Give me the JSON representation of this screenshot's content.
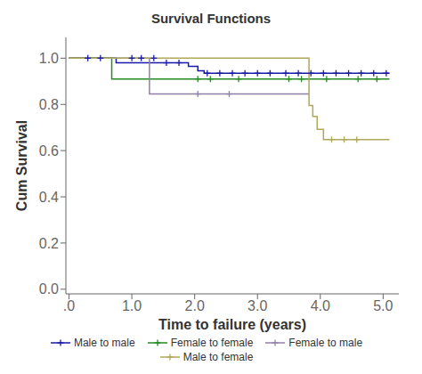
{
  "chart_data": {
    "type": "line",
    "title": "Survival Functions",
    "x_label": "Time to failure (years)",
    "y_label": "Cum Survival",
    "xlim": [
      -0.05,
      5.25
    ],
    "ylim": [
      -0.02,
      1.09
    ],
    "xticks": [
      {
        "value": 0.0,
        "label": ".0"
      },
      {
        "value": 1.0,
        "label": "1.0"
      },
      {
        "value": 2.0,
        "label": "2.0"
      },
      {
        "value": 3.0,
        "label": "3.0"
      },
      {
        "value": 4.0,
        "label": "4.0"
      },
      {
        "value": 5.0,
        "label": "5.0"
      }
    ],
    "yticks": [
      {
        "value": 0.0,
        "label": "0.0"
      },
      0.2,
      0.4,
      0.6,
      0.8,
      {
        "value": 1.0,
        "label": "1.0"
      }
    ],
    "grid": false,
    "legend": "bottom",
    "series": [
      {
        "name": "Male to male",
        "color": "#1a1aaa",
        "marker": "plus",
        "x": [
          0.0,
          0.75,
          0.75,
          1.9,
          1.9,
          2.05,
          2.05,
          2.15,
          2.15,
          5.1
        ],
        "values": [
          1.0,
          1.0,
          0.98,
          0.98,
          0.965,
          0.965,
          0.945,
          0.945,
          0.935,
          0.935
        ],
        "censors": [
          [
            0.3,
            1.0
          ],
          [
            0.5,
            1.0
          ],
          [
            1.0,
            1.0
          ],
          [
            1.15,
            1.0
          ],
          [
            1.35,
            1.0
          ],
          [
            1.55,
            0.98
          ],
          [
            1.75,
            0.98
          ],
          [
            2.2,
            0.935
          ],
          [
            2.4,
            0.935
          ],
          [
            2.6,
            0.935
          ],
          [
            2.8,
            0.935
          ],
          [
            3.0,
            0.935
          ],
          [
            3.2,
            0.935
          ],
          [
            3.45,
            0.935
          ],
          [
            3.65,
            0.935
          ],
          [
            3.85,
            0.935
          ],
          [
            4.05,
            0.935
          ],
          [
            4.25,
            0.935
          ],
          [
            4.45,
            0.935
          ],
          [
            4.65,
            0.935
          ],
          [
            4.85,
            0.935
          ],
          [
            5.05,
            0.935
          ]
        ]
      },
      {
        "name": "Female to female",
        "color": "#228B22",
        "marker": "plus",
        "x": [
          0.0,
          0.68,
          0.68,
          5.1
        ],
        "values": [
          1.0,
          1.0,
          0.91,
          0.91
        ],
        "censors": [
          [
            2.05,
            0.91
          ],
          [
            2.25,
            0.91
          ],
          [
            2.7,
            0.91
          ],
          [
            3.5,
            0.91
          ],
          [
            3.7,
            0.91
          ],
          [
            4.1,
            0.91
          ],
          [
            4.6,
            0.91
          ],
          [
            4.9,
            0.91
          ]
        ]
      },
      {
        "name": "Female to male",
        "color": "#9080A8",
        "marker": "plus",
        "x": [
          0.0,
          1.28,
          1.28,
          3.82,
          3.82
        ],
        "values": [
          1.0,
          1.0,
          0.845,
          0.845,
          0.845
        ],
        "censors": [
          [
            2.05,
            0.845
          ],
          [
            2.55,
            0.845
          ]
        ]
      },
      {
        "name": "Male to female",
        "color": "#B0A858",
        "marker": "plus",
        "x": [
          0.0,
          3.82,
          3.82,
          3.88,
          3.88,
          3.95,
          3.95,
          4.05,
          4.05,
          5.1
        ],
        "values": [
          1.0,
          1.0,
          0.795,
          0.795,
          0.748,
          0.748,
          0.692,
          0.692,
          0.648,
          0.648
        ],
        "censors": [
          [
            4.18,
            0.648
          ],
          [
            4.38,
            0.648
          ],
          [
            4.58,
            0.648
          ]
        ]
      }
    ]
  }
}
